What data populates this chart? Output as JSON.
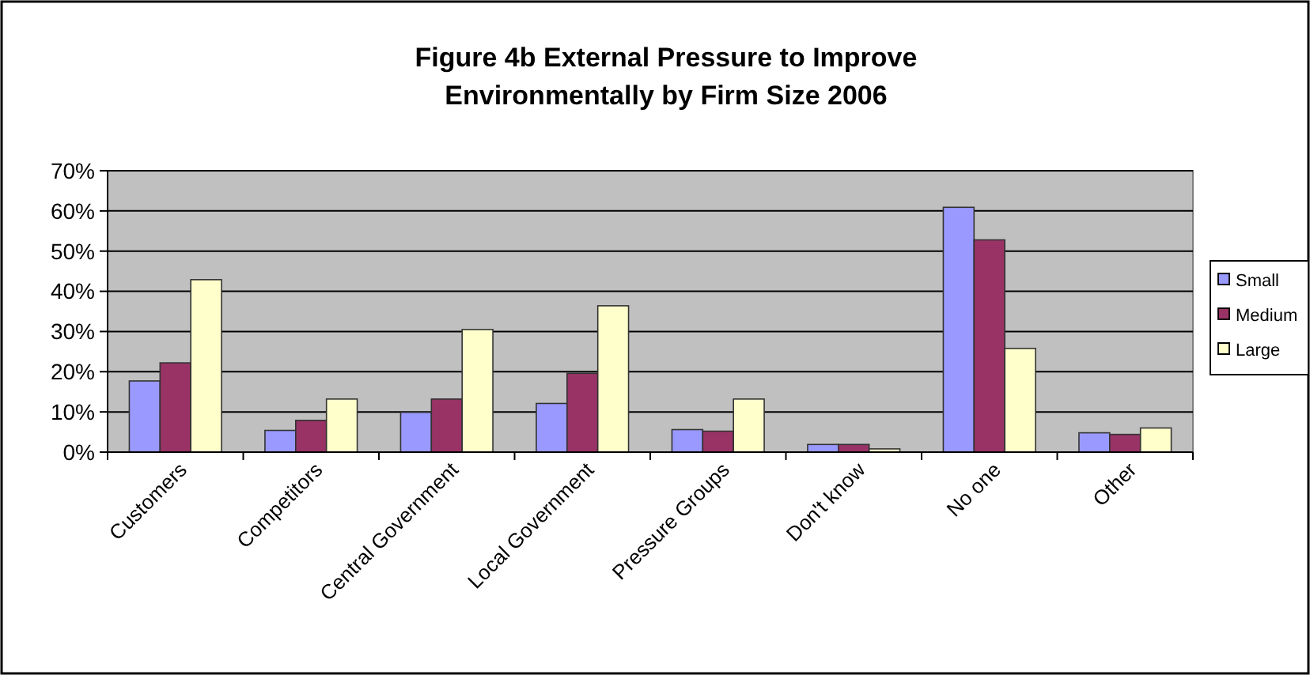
{
  "chart_data": {
    "type": "bar",
    "title": "Figure 4b External Pressure to Improve Environmentally by Firm Size 2006",
    "categories": [
      "Customers",
      "Competitors",
      "Central Government",
      "Local Government",
      "Pressure Groups",
      "Don't know",
      "No one",
      "Other"
    ],
    "series": [
      {
        "name": "Small",
        "color": "#9999ff",
        "values": [
          17.7,
          5.4,
          9.9,
          12.1,
          5.6,
          1.9,
          60.9,
          4.8
        ]
      },
      {
        "name": "Medium",
        "color": "#993366",
        "values": [
          22.2,
          7.9,
          13.2,
          19.6,
          5.2,
          1.9,
          52.8,
          4.4
        ]
      },
      {
        "name": "Large",
        "color": "#ffffcc",
        "values": [
          42.9,
          13.2,
          30.5,
          36.4,
          13.2,
          0.8,
          25.8,
          6.0
        ]
      }
    ],
    "ylim": [
      0,
      70
    ],
    "yticks": [
      {
        "value": 0,
        "label": "0%"
      },
      {
        "value": 10,
        "label": "10%"
      },
      {
        "value": 20,
        "label": "20%"
      },
      {
        "value": 30,
        "label": "30%"
      },
      {
        "value": 40,
        "label": "40%"
      },
      {
        "value": 50,
        "label": "50%"
      },
      {
        "value": 60,
        "label": "60%"
      },
      {
        "value": 70,
        "label": "70%"
      }
    ],
    "grid": "y",
    "legend": "right"
  }
}
